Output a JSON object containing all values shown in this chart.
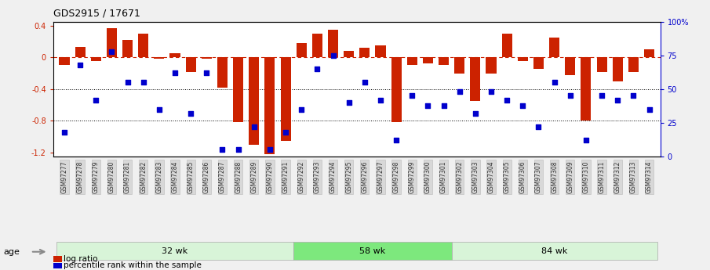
{
  "title": "GDS2915 / 17671",
  "samples": [
    "GSM97277",
    "GSM97278",
    "GSM97279",
    "GSM97280",
    "GSM97281",
    "GSM97282",
    "GSM97283",
    "GSM97284",
    "GSM97285",
    "GSM97286",
    "GSM97287",
    "GSM97288",
    "GSM97289",
    "GSM97290",
    "GSM97291",
    "GSM97292",
    "GSM97293",
    "GSM97294",
    "GSM97295",
    "GSM97296",
    "GSM97297",
    "GSM97298",
    "GSM97299",
    "GSM97300",
    "GSM97301",
    "GSM97302",
    "GSM97303",
    "GSM97304",
    "GSM97305",
    "GSM97306",
    "GSM97307",
    "GSM97308",
    "GSM97309",
    "GSM97310",
    "GSM97311",
    "GSM97312",
    "GSM97313",
    "GSM97314"
  ],
  "log_ratio": [
    -0.1,
    0.13,
    -0.05,
    0.37,
    0.22,
    0.3,
    -0.02,
    0.05,
    -0.18,
    -0.02,
    -0.38,
    -0.82,
    -1.1,
    -1.22,
    -1.05,
    0.18,
    0.3,
    0.35,
    0.08,
    0.12,
    0.15,
    -0.82,
    -0.1,
    -0.08,
    -0.1,
    -0.2,
    -0.55,
    -0.2,
    0.3,
    -0.05,
    -0.15,
    0.25,
    -0.22,
    -0.8,
    -0.18,
    -0.3,
    -0.18,
    0.1
  ],
  "percentile": [
    18,
    68,
    42,
    78,
    55,
    55,
    35,
    62,
    32,
    62,
    5,
    5,
    22,
    5,
    18,
    35,
    65,
    75,
    40,
    55,
    42,
    12,
    45,
    38,
    38,
    48,
    32,
    48,
    42,
    38,
    22,
    55,
    45,
    12,
    45,
    42,
    45,
    35
  ],
  "groups": [
    {
      "label": "32 wk",
      "start": 0,
      "end": 15
    },
    {
      "label": "58 wk",
      "start": 15,
      "end": 25
    },
    {
      "label": "84 wk",
      "start": 25,
      "end": 38
    }
  ],
  "group_colors": [
    "#d8f4d8",
    "#7de87d",
    "#d8f4d8"
  ],
  "group_edge_colors": [
    "#aaaaaa",
    "#aaaaaa",
    "#aaaaaa"
  ],
  "bar_color": "#cc2200",
  "dot_color": "#0000cc",
  "ylim_left": [
    -1.25,
    0.45
  ],
  "ylim_right": [
    0,
    100
  ],
  "yticks_left": [
    -1.2,
    -0.8,
    -0.4,
    0.0,
    0.4
  ],
  "ytick_labels_left": [
    "-1.2",
    "-0.8",
    "-0.4",
    "0",
    "0.4"
  ],
  "yticks_right": [
    0,
    25,
    50,
    75,
    100
  ],
  "ytick_labels_right": [
    "0",
    "25",
    "50",
    "75",
    "100%"
  ],
  "hlines": [
    -0.8,
    -0.4,
    0.0
  ],
  "hline_styles": [
    "dotted",
    "dotted",
    "dashed"
  ],
  "hline_colors": [
    "black",
    "black",
    "#cc2200"
  ],
  "background_color": "#f0f0f0",
  "plot_bg": "#ffffff",
  "xtick_label_color": "#444444",
  "xtick_bg_color": "#cccccc",
  "left_ytick_color": "#cc2200",
  "age_arrow_color": "#888888"
}
